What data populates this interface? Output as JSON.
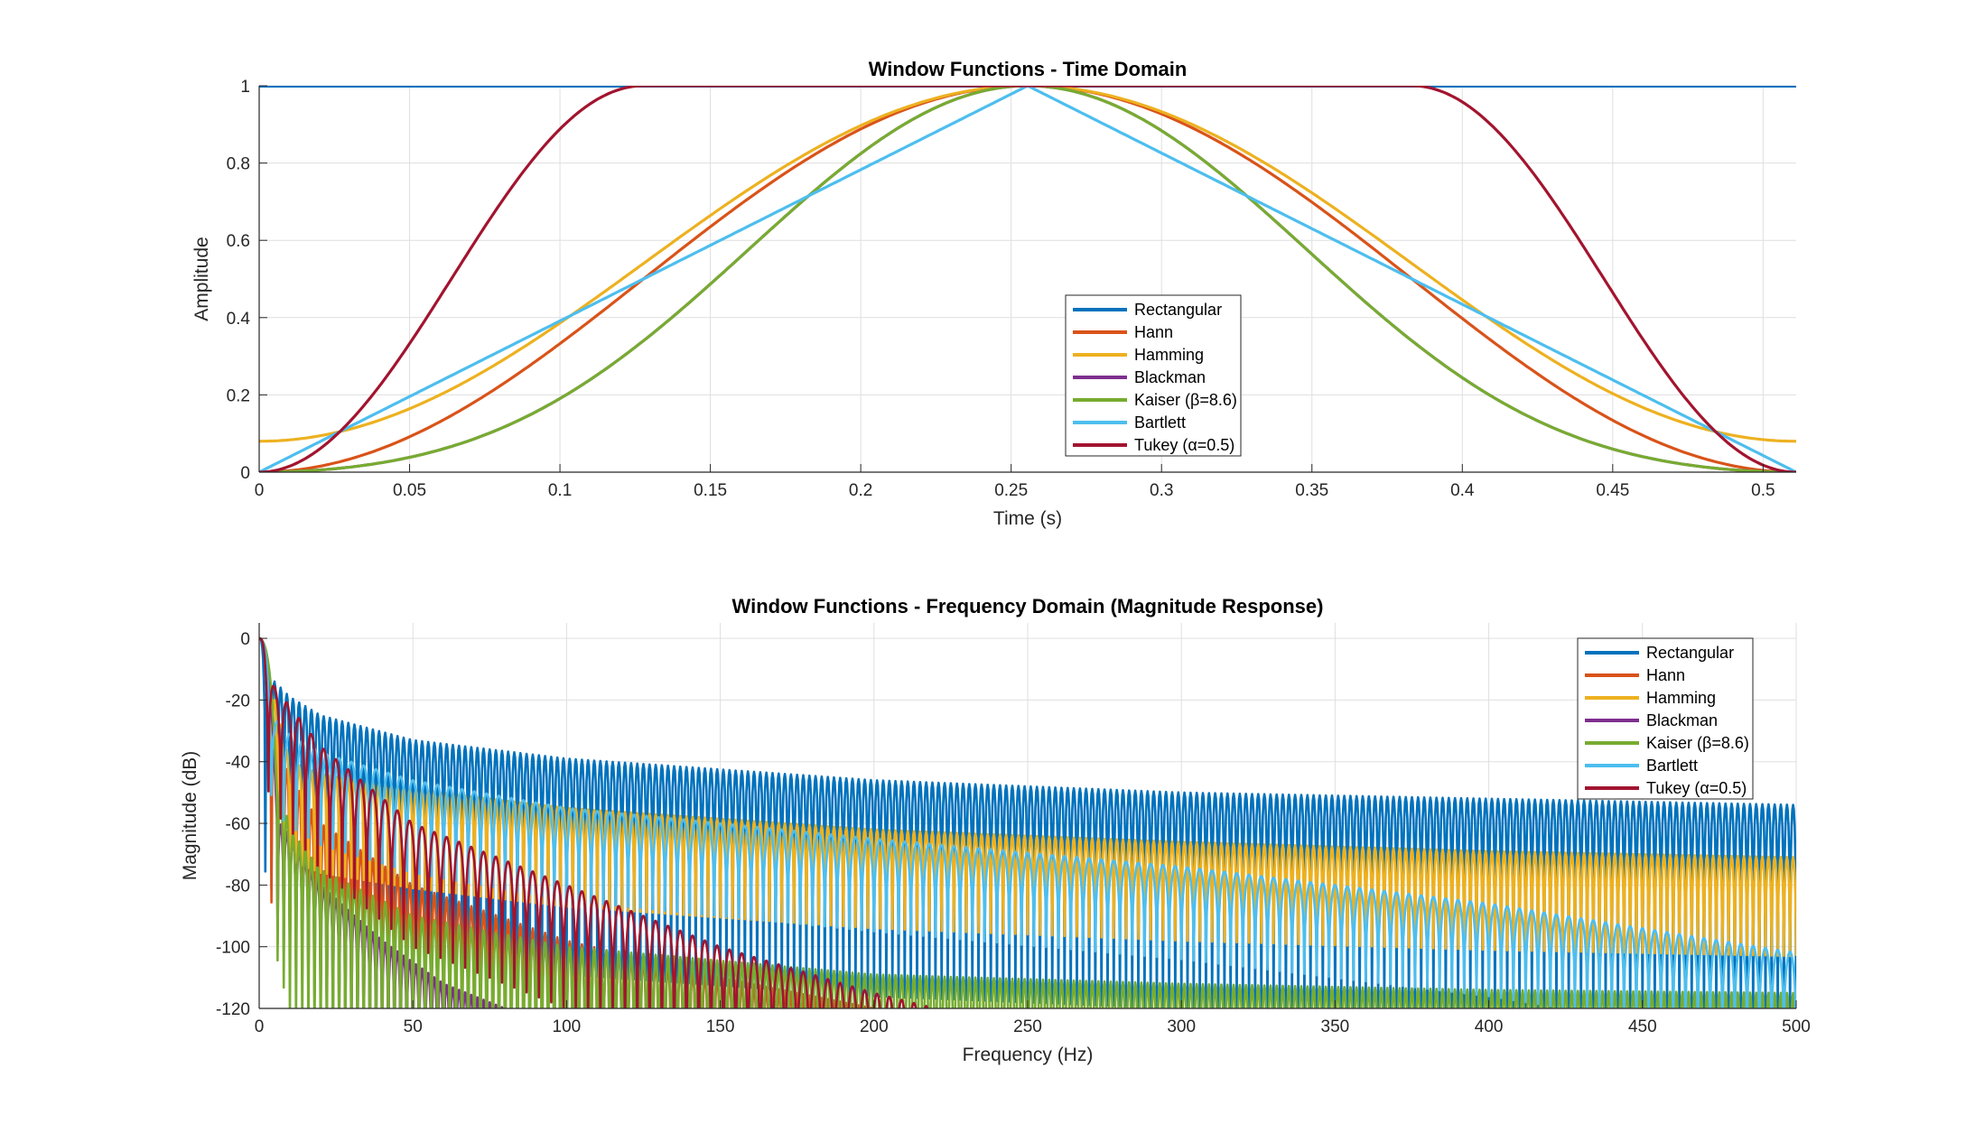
{
  "chart_data": [
    {
      "type": "line",
      "title": "Window Functions - Time Domain",
      "xlabel": "Time (s)",
      "ylabel": "Amplitude",
      "xlim": [
        0,
        0.511
      ],
      "ylim": [
        0,
        1
      ],
      "xticks": [
        0,
        0.05,
        0.1,
        0.15,
        0.2,
        0.25,
        0.3,
        0.35,
        0.4,
        0.45,
        0.5
      ],
      "xtick_labels": [
        "0",
        "0.05",
        "0.1",
        "0.15",
        "0.2",
        "0.25",
        "0.3",
        "0.35",
        "0.4",
        "0.45",
        "0.5"
      ],
      "yticks": [
        0,
        0.2,
        0.4,
        0.6,
        0.8,
        1
      ],
      "ytick_labels": [
        "0",
        "0.2",
        "0.4",
        "0.6",
        "0.8",
        "1"
      ],
      "grid": true,
      "legend_position": "center-bottom",
      "series": [
        {
          "name": "Rectangular",
          "color": "#0072BD",
          "x": [
            0,
            0.511
          ],
          "y": [
            1,
            1
          ]
        },
        {
          "name": "Hann",
          "color": "#D95319",
          "x": [
            0,
            0.05,
            0.1,
            0.15,
            0.2,
            0.255,
            0.3,
            0.35,
            0.4,
            0.45,
            0.511
          ],
          "y": [
            0,
            0.09,
            0.35,
            0.65,
            0.89,
            1,
            0.93,
            0.68,
            0.39,
            0.12,
            0
          ]
        },
        {
          "name": "Hamming",
          "color": "#EDB120",
          "x": [
            0,
            0.05,
            0.1,
            0.15,
            0.2,
            0.255,
            0.3,
            0.35,
            0.4,
            0.45,
            0.511
          ],
          "y": [
            0.08,
            0.17,
            0.4,
            0.68,
            0.9,
            1,
            0.94,
            0.7,
            0.43,
            0.19,
            0.08
          ]
        },
        {
          "name": "Blackman",
          "color": "#7E2F8E",
          "x": [
            0,
            0.05,
            0.1,
            0.15,
            0.2,
            0.255,
            0.3,
            0.35,
            0.4,
            0.45,
            0.511
          ],
          "y": [
            0,
            0.04,
            0.19,
            0.48,
            0.82,
            1,
            0.87,
            0.52,
            0.22,
            0.05,
            0
          ]
        },
        {
          "name": "Kaiser (β=8.6)",
          "color": "#77AC30",
          "x": [
            0,
            0.05,
            0.1,
            0.15,
            0.2,
            0.255,
            0.3,
            0.35,
            0.4,
            0.45,
            0.511
          ],
          "y": [
            0,
            0.04,
            0.19,
            0.48,
            0.82,
            1,
            0.87,
            0.52,
            0.22,
            0.05,
            0
          ]
        },
        {
          "name": "Bartlett",
          "color": "#4DBEEE",
          "x": [
            0,
            0.2555,
            0.511
          ],
          "y": [
            0,
            1,
            0
          ]
        },
        {
          "name": "Tukey (α=0.5)",
          "color": "#A2142F",
          "x": [
            0,
            0.025,
            0.05,
            0.075,
            0.1,
            0.125,
            0.25,
            0.385,
            0.41,
            0.435,
            0.46,
            0.485,
            0.511
          ],
          "y": [
            0,
            0.08,
            0.32,
            0.63,
            0.9,
            1,
            1,
            1,
            0.93,
            0.71,
            0.42,
            0.14,
            0
          ]
        }
      ]
    },
    {
      "type": "line",
      "title": "Window Functions - Frequency Domain (Magnitude Response)",
      "xlabel": "Frequency (Hz)",
      "ylabel": "Magnitude (dB)",
      "xlim": [
        0,
        500
      ],
      "ylim": [
        -120,
        5
      ],
      "xticks": [
        0,
        50,
        100,
        150,
        200,
        250,
        300,
        350,
        400,
        450,
        500
      ],
      "xtick_labels": [
        "0",
        "50",
        "100",
        "150",
        "200",
        "250",
        "300",
        "350",
        "400",
        "450",
        "500"
      ],
      "yticks": [
        -120,
        -100,
        -80,
        -60,
        -40,
        -20,
        0
      ],
      "ytick_labels": [
        "-120",
        "-100",
        "-80",
        "-60",
        "-40",
        "-20",
        "0"
      ],
      "grid": true,
      "legend_position": "top-right",
      "series": [
        {
          "name": "Rectangular",
          "color": "#0072BD",
          "x": [
            0,
            5,
            10,
            20,
            50,
            100,
            200,
            300,
            400,
            500
          ],
          "y_peak": [
            0,
            -14,
            -19,
            -25,
            -33,
            -39,
            -46,
            -50,
            -52,
            -54
          ],
          "y_trough_min": -120
        },
        {
          "name": "Hann",
          "color": "#D95319",
          "x": [
            0,
            5,
            10,
            20,
            50,
            100,
            150,
            200
          ],
          "y_peak": [
            0,
            -32,
            -45,
            -60,
            -80,
            -98,
            -110,
            -120
          ],
          "y_trough_min": -120
        },
        {
          "name": "Hamming",
          "color": "#EDB120",
          "x": [
            0,
            10,
            20,
            50,
            100,
            200,
            300,
            400,
            500
          ],
          "y_peak": [
            0,
            -40,
            -44,
            -49,
            -55,
            -62,
            -66,
            -69,
            -71
          ],
          "y_trough_min": -120
        },
        {
          "name": "Blackman",
          "color": "#7E2F8E",
          "x": [
            0,
            5,
            10,
            20,
            40,
            60,
            80
          ],
          "y_peak": [
            0,
            -58,
            -64,
            -80,
            -98,
            -112,
            -120
          ],
          "y_trough_min": -120
        },
        {
          "name": "Kaiser (β=8.6)",
          "color": "#77AC30",
          "x": [
            0,
            5,
            10,
            20,
            50,
            100,
            200,
            300,
            400,
            500
          ],
          "y_peak": [
            0,
            -40,
            -62,
            -75,
            -90,
            -100,
            -109,
            -112,
            -114,
            -115
          ],
          "y_trough_min": -120
        },
        {
          "name": "Bartlett",
          "color": "#4DBEEE",
          "x": [
            0,
            5,
            10,
            20,
            50,
            100,
            200,
            300,
            400,
            500
          ],
          "y_peak": [
            0,
            -26,
            -31,
            -37,
            -46,
            -55,
            -65,
            -74,
            -86,
            -102
          ],
          "y_trough_min": -120
        },
        {
          "name": "Tukey (α=0.5)",
          "color": "#A2142F",
          "x": [
            0,
            5,
            10,
            20,
            50,
            100,
            150,
            200,
            220
          ],
          "y_peak": [
            0,
            -16,
            -22,
            -35,
            -60,
            -80,
            -100,
            -115,
            -120
          ],
          "y_trough_min": -120
        }
      ]
    }
  ]
}
